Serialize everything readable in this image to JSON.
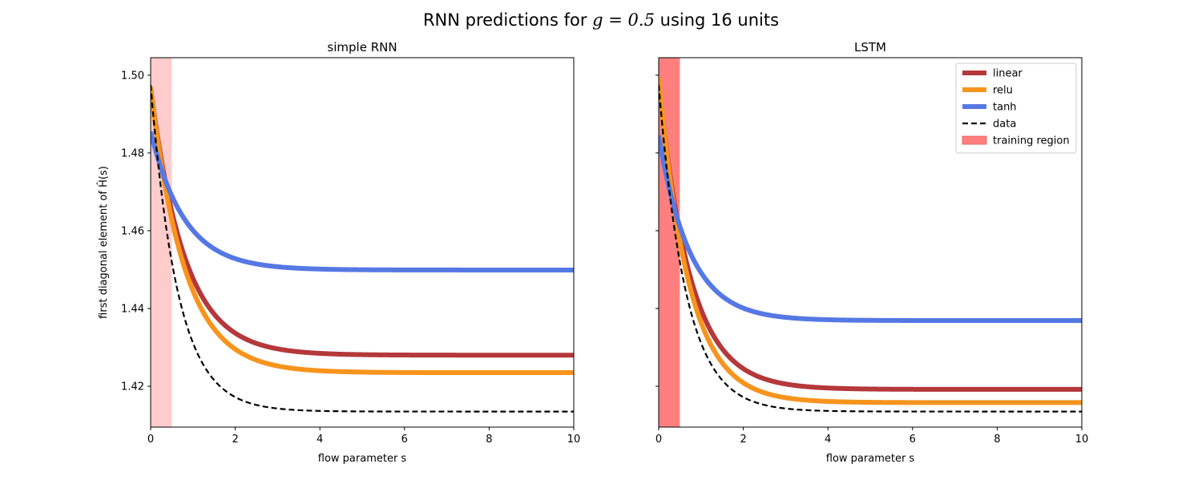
{
  "figure": {
    "suptitle_prefix": "RNN predictions for ",
    "suptitle_math": "g = 0.5",
    "suptitle_suffix": " using 16 units"
  },
  "colors": {
    "linear": "#b5383a",
    "relu": "#f7941d",
    "tanh": "#5578e4",
    "data": "#000000",
    "training_region_left": "#ffcccc",
    "training_region_right": "#ff7f7f"
  },
  "chart_data": [
    {
      "type": "line",
      "title": "simple RNN",
      "xlabel": "flow parameter s",
      "ylabel": "first diagonal element of Ĥ(s)",
      "xlim": [
        0,
        10
      ],
      "ylim": [
        1.4095,
        1.5045
      ],
      "xticks": [
        0,
        2,
        4,
        6,
        8,
        10
      ],
      "yticks": [
        1.42,
        1.44,
        1.46,
        1.48,
        1.5
      ],
      "training_region": [
        0,
        0.5
      ],
      "training_region_color": "#ffcccc",
      "grid": false,
      "legend": null,
      "series": [
        {
          "name": "linear",
          "color": "#b5383a",
          "style": "solid",
          "width": 6,
          "start": 1.497,
          "asymptote": 1.428,
          "rate": 1.25
        },
        {
          "name": "relu",
          "color": "#f7941d",
          "style": "solid",
          "width": 6,
          "start": 1.497,
          "asymptote": 1.4235,
          "rate": 1.25
        },
        {
          "name": "tanh",
          "color": "#5578e4",
          "style": "solid",
          "width": 6,
          "start": 1.4855,
          "asymptote": 1.4499,
          "rate": 1.25
        },
        {
          "name": "data",
          "color": "#000000",
          "style": "dashed",
          "width": 2.2,
          "start": 1.4975,
          "asymptote": 1.4135,
          "rate": 1.56
        }
      ]
    },
    {
      "type": "line",
      "title": "LSTM",
      "xlabel": "flow parameter s",
      "ylabel": "",
      "xlim": [
        0,
        10
      ],
      "ylim": [
        1.4095,
        1.5045
      ],
      "xticks": [
        0,
        2,
        4,
        6,
        8,
        10
      ],
      "yticks": [
        1.42,
        1.44,
        1.46,
        1.48,
        1.5
      ],
      "training_region": [
        0,
        0.5
      ],
      "training_region_color": "#ff7f7f",
      "grid": false,
      "legend": "top-right",
      "series": [
        {
          "name": "linear",
          "color": "#b5383a",
          "style": "solid",
          "width": 6,
          "start": 1.4985,
          "asymptote": 1.4192,
          "rate": 1.35
        },
        {
          "name": "relu",
          "color": "#f7941d",
          "style": "solid",
          "width": 6,
          "start": 1.4995,
          "asymptote": 1.4158,
          "rate": 1.4
        },
        {
          "name": "tanh",
          "color": "#5578e4",
          "style": "solid",
          "width": 6,
          "start": 1.4845,
          "asymptote": 1.4369,
          "rate": 1.35
        },
        {
          "name": "data",
          "color": "#000000",
          "style": "dashed",
          "width": 2.2,
          "start": 1.4975,
          "asymptote": 1.4135,
          "rate": 1.56
        }
      ]
    }
  ],
  "legend": {
    "entries": [
      {
        "label": "linear",
        "color": "#b5383a",
        "kind": "line"
      },
      {
        "label": "relu",
        "color": "#f7941d",
        "kind": "line"
      },
      {
        "label": "tanh",
        "color": "#5578e4",
        "kind": "line"
      },
      {
        "label": "data",
        "color": "#000000",
        "kind": "dashed"
      },
      {
        "label": "training region",
        "color": "#ff7f7f",
        "kind": "patch"
      }
    ]
  }
}
